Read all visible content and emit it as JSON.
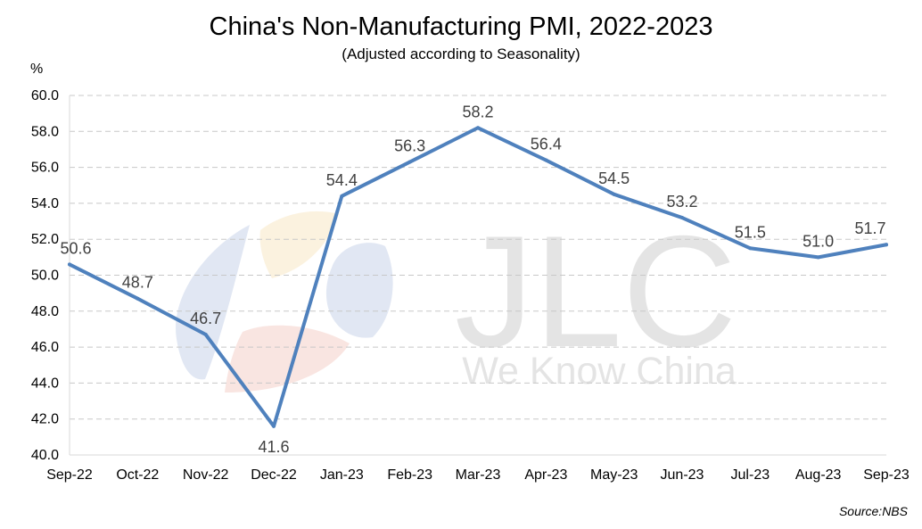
{
  "chart_data": {
    "type": "line",
    "title": "China's Non-Manufacturing PMI, 2022-2023",
    "subtitle": "(Adjusted according to Seasonality)",
    "ylabel": "%",
    "xlabel": "",
    "categories": [
      "Sep-22",
      "Oct-22",
      "Nov-22",
      "Dec-22",
      "Jan-23",
      "Feb-23",
      "Mar-23",
      "Apr-23",
      "May-23",
      "Jun-23",
      "Jul-23",
      "Aug-23",
      "Sep-23"
    ],
    "series": [
      {
        "values": [
          50.6,
          48.7,
          46.7,
          41.6,
          54.4,
          56.3,
          58.2,
          56.4,
          54.5,
          53.2,
          51.5,
          51.0,
          51.7
        ],
        "labels": [
          "50.6",
          "48.7",
          "46.7",
          "41.6",
          "54.4",
          "56.3",
          "58.2",
          "56.4",
          "54.5",
          "53.2",
          "51.5",
          "51.0",
          "51.7"
        ],
        "color": "#4F81BD"
      }
    ],
    "ylim": [
      40,
      60
    ],
    "yticks": [
      "40.0",
      "42.0",
      "44.0",
      "46.0",
      "48.0",
      "50.0",
      "52.0",
      "54.0",
      "56.0",
      "58.0",
      "60.0"
    ],
    "grid": true,
    "legend": "none",
    "source": "Source:NBS"
  },
  "watermark": {
    "logo_text": "JLC",
    "tagline": "We Know China"
  }
}
